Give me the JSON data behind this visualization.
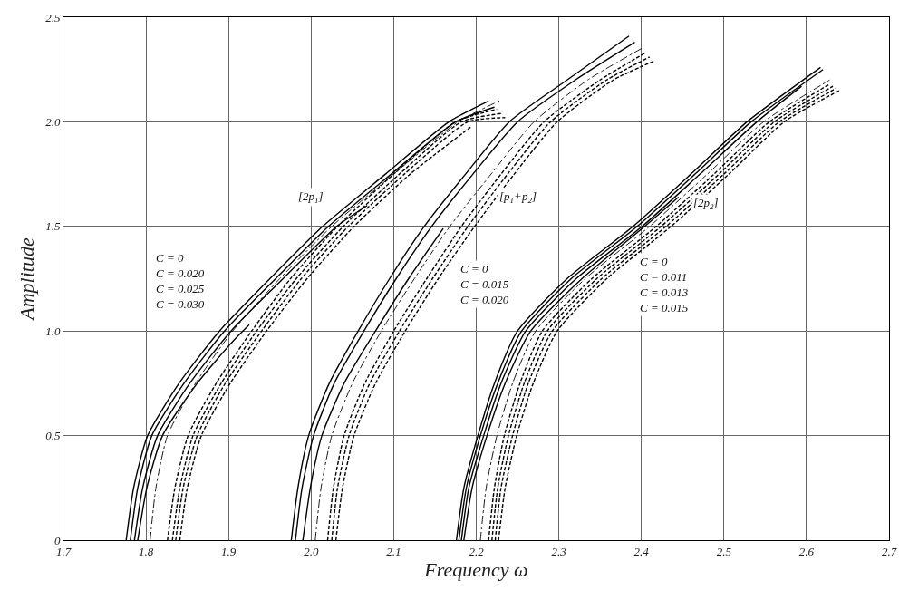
{
  "chart_data": {
    "type": "line",
    "xlabel": "Frequency ω",
    "ylabel": "Amplitude",
    "xlim": [
      1.7,
      2.7
    ],
    "ylim": [
      0,
      2.5
    ],
    "xticks": [
      1.7,
      1.8,
      1.9,
      {
        "value": 2,
        "label": "2.0"
      },
      2.1,
      2.2,
      2.3,
      2.4,
      2.5,
      2.6,
      2.7
    ],
    "yticks": [
      0,
      0.5,
      {
        "value": 1,
        "label": "1.0"
      },
      1.5,
      {
        "value": 2,
        "label": "2.0"
      },
      2.5
    ],
    "grid": true,
    "marker": "none",
    "series": [
      {
        "color": "#000000",
        "line_style": "solid",
        "x": [
          1.776,
          1.785,
          1.802,
          1.84,
          1.889,
          1.95,
          2.014,
          2.09,
          2.167,
          2.215
        ],
        "values": [
          0,
          0.25,
          0.5,
          0.75,
          1.0,
          1.25,
          1.5,
          1.75,
          2.0,
          2.1
        ]
      },
      {
        "color": "#000000",
        "line_style": "solid",
        "x": [
          1.781,
          1.79,
          1.807,
          1.846,
          1.895,
          1.957,
          2.021,
          2.097,
          2.175,
          2.222
        ],
        "values": [
          0,
          0.25,
          0.5,
          0.75,
          1.0,
          1.25,
          1.5,
          1.75,
          2.0,
          2.07
        ]
      },
      {
        "color": "#000000",
        "line_style": "solid",
        "x": [
          1.786,
          1.796,
          1.814,
          1.853,
          1.903,
          1.966,
          2.031,
          2.068
        ],
        "values": [
          0,
          0.25,
          0.5,
          0.75,
          1.0,
          1.25,
          1.5,
          1.6
        ]
      },
      {
        "color": "#000000",
        "line_style": "solid",
        "x": [
          1.79,
          1.801,
          1.82,
          1.862,
          1.905,
          1.925
        ],
        "values": [
          0,
          0.25,
          0.5,
          0.75,
          0.95,
          1.03
        ]
      },
      {
        "color": "#000000",
        "line_style": "dashdot",
        "x": [
          1.805,
          1.812,
          1.826,
          1.86,
          1.905,
          1.962,
          2.025,
          2.1,
          2.178,
          2.228
        ],
        "values": [
          0,
          0.25,
          0.5,
          0.75,
          1.0,
          1.25,
          1.5,
          1.75,
          2.0,
          2.1
        ]
      },
      {
        "color": "#000000",
        "line_style": "dashed",
        "x": [
          1.826,
          1.835,
          1.851,
          1.885,
          1.928,
          1.975,
          2.032,
          2.1,
          2.175,
          2.225
        ],
        "values": [
          0,
          0.25,
          0.5,
          0.75,
          1.0,
          1.25,
          1.5,
          1.75,
          2.0,
          2.06
        ]
      },
      {
        "color": "#000000",
        "line_style": "dashed",
        "x": [
          1.832,
          1.841,
          1.857,
          1.891,
          1.934,
          1.982,
          2.039,
          2.107,
          2.182,
          2.23
        ],
        "values": [
          0,
          0.25,
          0.5,
          0.75,
          1.0,
          1.25,
          1.5,
          1.75,
          2.0,
          2.04
        ]
      },
      {
        "color": "#000000",
        "line_style": "dashed",
        "x": [
          1.836,
          1.845,
          1.862,
          1.896,
          1.94,
          1.988,
          2.045,
          2.113,
          2.19,
          2.235
        ],
        "values": [
          0,
          0.25,
          0.5,
          0.75,
          1.0,
          1.25,
          1.5,
          1.75,
          2.0,
          2.02
        ]
      },
      {
        "color": "#000000",
        "line_style": "dashed",
        "x": [
          1.841,
          1.85,
          1.867,
          1.902,
          1.946,
          1.995,
          2.052,
          2.12,
          2.195
        ],
        "values": [
          0,
          0.25,
          0.5,
          0.75,
          1.0,
          1.25,
          1.5,
          1.75,
          1.98
        ]
      },
      {
        "color": "#000000",
        "line_style": "solid",
        "x": [
          1.976,
          1.984,
          1.997,
          2.022,
          2.057,
          2.095,
          2.137,
          2.187,
          2.24,
          2.31,
          2.385
        ],
        "values": [
          0,
          0.25,
          0.5,
          0.75,
          1.0,
          1.25,
          1.5,
          1.75,
          2.0,
          2.2,
          2.41
        ]
      },
      {
        "color": "#000000",
        "line_style": "solid",
        "x": [
          1.981,
          1.989,
          2.003,
          2.028,
          2.064,
          2.103,
          2.146,
          2.196,
          2.25,
          2.32,
          2.392
        ],
        "values": [
          0,
          0.25,
          0.5,
          0.75,
          1.0,
          1.25,
          1.5,
          1.75,
          2.0,
          2.2,
          2.38
        ]
      },
      {
        "color": "#000000",
        "line_style": "solid",
        "x": [
          1.99,
          1.999,
          2.013,
          2.04,
          2.078,
          2.118,
          2.16
        ],
        "values": [
          0,
          0.25,
          0.5,
          0.75,
          1.0,
          1.25,
          1.49
        ]
      },
      {
        "color": "#000000",
        "line_style": "dashdot",
        "x": [
          2.005,
          2.012,
          2.025,
          2.05,
          2.085,
          2.125,
          2.168,
          2.218,
          2.27,
          2.335,
          2.4
        ],
        "values": [
          0,
          0.25,
          0.5,
          0.75,
          1.0,
          1.25,
          1.5,
          1.75,
          2.0,
          2.2,
          2.35
        ]
      },
      {
        "color": "#000000",
        "line_style": "dashed",
        "x": [
          2.02,
          2.027,
          2.04,
          2.065,
          2.1,
          2.14,
          2.182,
          2.23,
          2.282,
          2.35,
          2.405
        ],
        "values": [
          0,
          0.25,
          0.5,
          0.75,
          1.0,
          1.25,
          1.5,
          1.75,
          2.0,
          2.2,
          2.33
        ]
      },
      {
        "color": "#000000",
        "line_style": "dashed",
        "x": [
          2.025,
          2.032,
          2.046,
          2.071,
          2.107,
          2.147,
          2.19,
          2.238,
          2.29,
          2.358,
          2.41
        ],
        "values": [
          0,
          0.25,
          0.5,
          0.75,
          1.0,
          1.25,
          1.5,
          1.75,
          2.0,
          2.2,
          2.31
        ]
      },
      {
        "color": "#000000",
        "line_style": "dashed",
        "x": [
          2.03,
          2.038,
          2.052,
          2.078,
          2.114,
          2.154,
          2.198,
          2.246,
          2.298,
          2.366,
          2.415
        ],
        "values": [
          0,
          0.25,
          0.5,
          0.75,
          1.0,
          1.25,
          1.5,
          1.75,
          2.0,
          2.2,
          2.29
        ]
      },
      {
        "color": "#000000",
        "line_style": "solid",
        "x": [
          2.176,
          2.185,
          2.202,
          2.222,
          2.25,
          2.31,
          2.39,
          2.46,
          2.528,
          2.617
        ],
        "values": [
          0,
          0.25,
          0.5,
          0.75,
          1.0,
          1.25,
          1.5,
          1.75,
          2.0,
          2.26
        ]
      },
      {
        "color": "#000000",
        "line_style": "solid",
        "x": [
          2.179,
          2.188,
          2.205,
          2.226,
          2.255,
          2.315,
          2.395,
          2.465,
          2.533,
          2.62
        ],
        "values": [
          0,
          0.25,
          0.5,
          0.75,
          1.0,
          1.25,
          1.5,
          1.75,
          2.0,
          2.25
        ]
      },
      {
        "color": "#000000",
        "line_style": "solid",
        "x": [
          2.182,
          2.191,
          2.209,
          2.23,
          2.26,
          2.321,
          2.401,
          2.471,
          2.54,
          2.594
        ],
        "values": [
          0,
          0.25,
          0.5,
          0.75,
          1.0,
          1.25,
          1.5,
          1.75,
          2.0,
          2.17
        ]
      },
      {
        "color": "#000000",
        "line_style": "solid",
        "x": [
          2.185,
          2.195,
          2.213,
          2.235,
          2.266,
          2.328,
          2.404,
          2.445
        ],
        "values": [
          0,
          0.25,
          0.5,
          0.75,
          1.0,
          1.25,
          1.5,
          1.64
        ]
      },
      {
        "color": "#000000",
        "line_style": "dashdot",
        "x": [
          2.205,
          2.212,
          2.225,
          2.244,
          2.272,
          2.332,
          2.41,
          2.48,
          2.548,
          2.628
        ],
        "values": [
          0,
          0.25,
          0.5,
          0.75,
          1.0,
          1.25,
          1.5,
          1.75,
          2.0,
          2.2
        ]
      },
      {
        "color": "#000000",
        "line_style": "dashed",
        "x": [
          2.215,
          2.222,
          2.234,
          2.253,
          2.28,
          2.34,
          2.418,
          2.488,
          2.555,
          2.628
        ],
        "values": [
          0,
          0.25,
          0.5,
          0.75,
          1.0,
          1.25,
          1.5,
          1.75,
          2.0,
          2.18
        ]
      },
      {
        "color": "#000000",
        "line_style": "dashed",
        "x": [
          2.219,
          2.226,
          2.239,
          2.258,
          2.286,
          2.346,
          2.424,
          2.494,
          2.561,
          2.632
        ],
        "values": [
          0,
          0.25,
          0.5,
          0.75,
          1.0,
          1.25,
          1.5,
          1.75,
          2.0,
          2.17
        ]
      },
      {
        "color": "#000000",
        "line_style": "dashed",
        "x": [
          2.223,
          2.23,
          2.244,
          2.263,
          2.292,
          2.352,
          2.43,
          2.5,
          2.567,
          2.636
        ],
        "values": [
          0,
          0.25,
          0.5,
          0.75,
          1.0,
          1.25,
          1.5,
          1.75,
          2.0,
          2.16
        ]
      },
      {
        "color": "#000000",
        "line_style": "dashed",
        "x": [
          2.227,
          2.235,
          2.249,
          2.269,
          2.298,
          2.358,
          2.436,
          2.506,
          2.573,
          2.64
        ],
        "values": [
          0,
          0.25,
          0.5,
          0.75,
          1.0,
          1.25,
          1.5,
          1.75,
          2.0,
          2.15
        ]
      }
    ],
    "annotations": [
      {
        "text": "[2p$_{1}$]",
        "x": 2.0,
        "y": 1.64
      },
      {
        "text": "[p$_{1}$+p$_{2}$]",
        "x": 2.25,
        "y": 1.64
      },
      {
        "text": "[2p$_{2}$]",
        "x": 2.478,
        "y": 1.61
      },
      "C = 0\nC = 0.020\nC = 0.025\nC = 0.030",
      "C = 0\nC = 0.015\nC = 0.020",
      "C = 0\nC = 0.011\nC = 0.013\nC = 0.015"
    ]
  }
}
